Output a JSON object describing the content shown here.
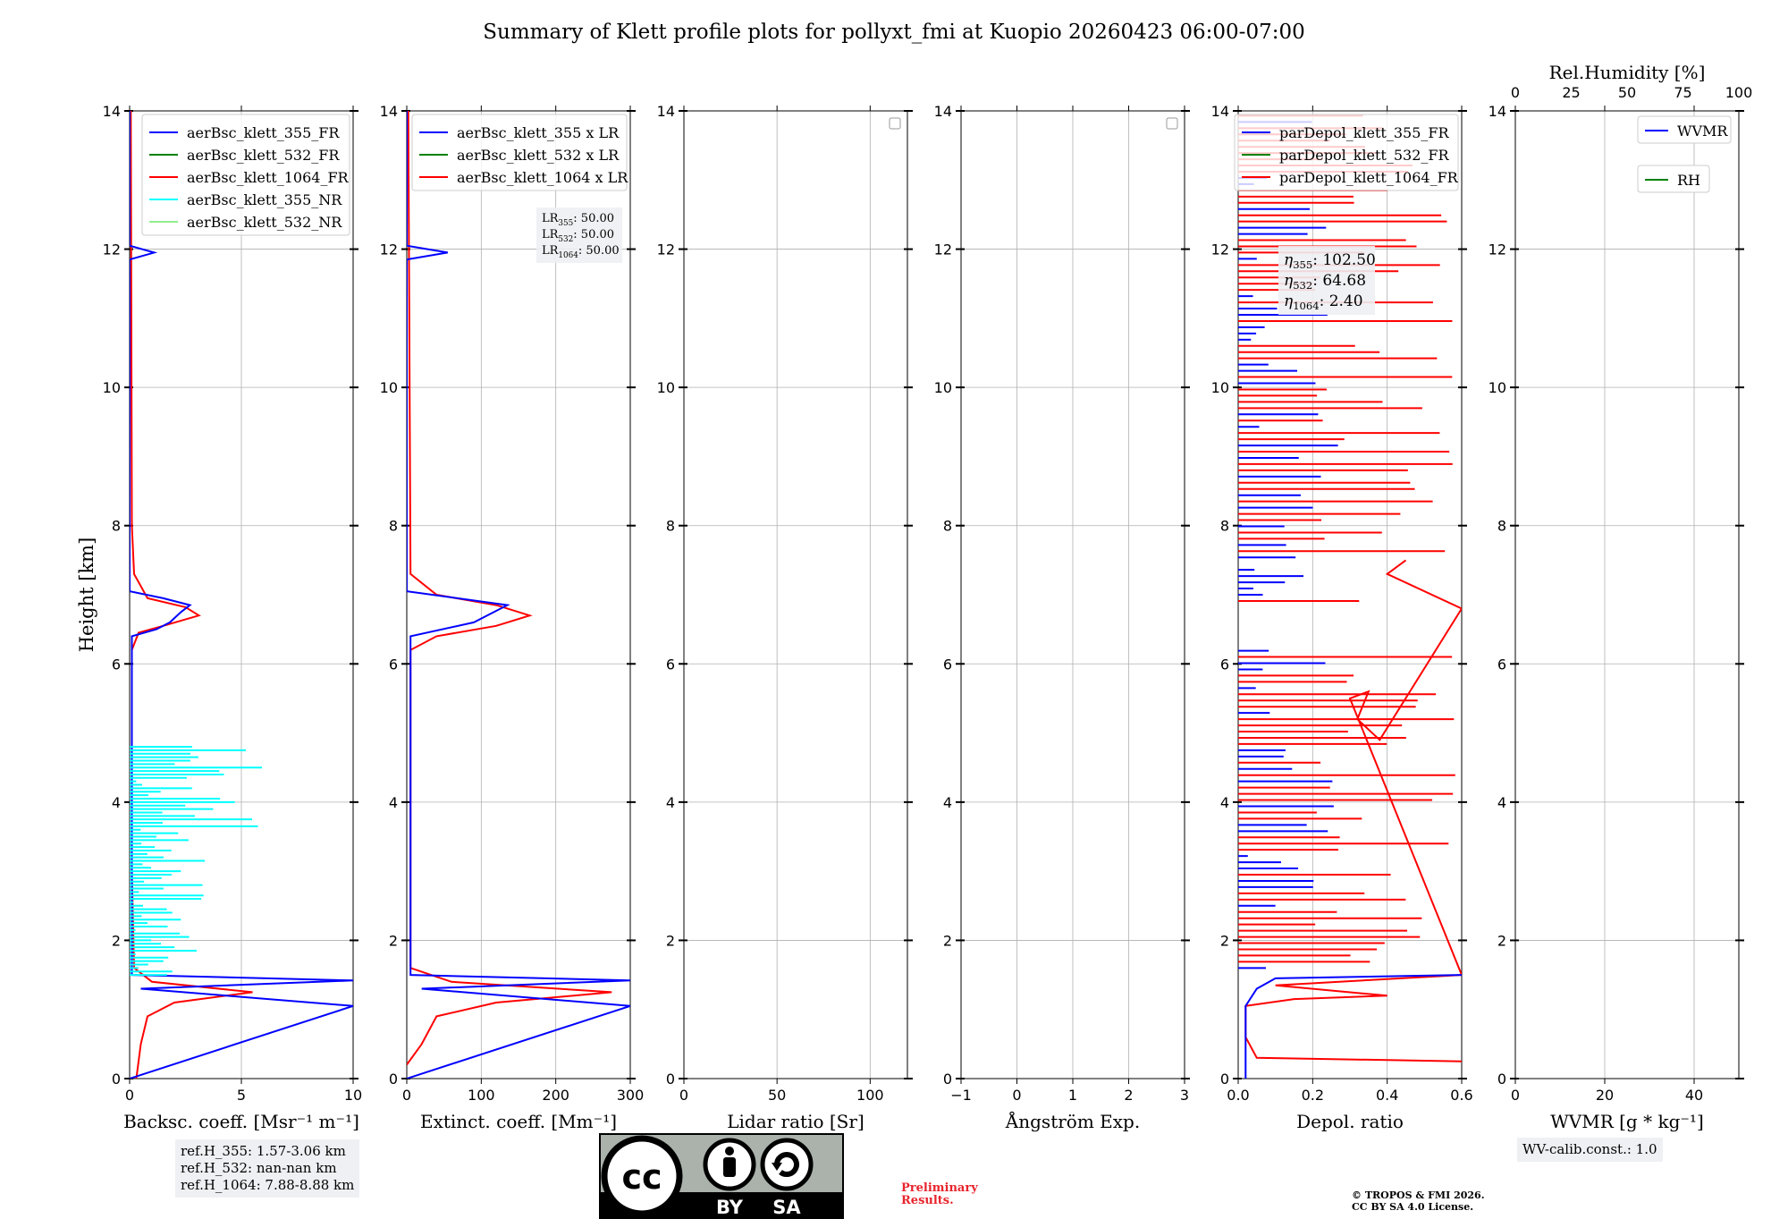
{
  "title": "Summary of Klett profile plots for pollyxt_fmi at Kuopio 20260423 06:00-07:00",
  "colors": {
    "c355": "#0000ff",
    "c532": "#008000",
    "c1064": "#ff0000",
    "c355nr": "#00ffff",
    "c532nr": "#90ee90"
  },
  "y_axis": {
    "label": "Height [km]",
    "ticks": [
      "0",
      "2",
      "4",
      "6",
      "8",
      "10",
      "12",
      "14"
    ]
  },
  "panels": [
    {
      "key": "bsc",
      "xlabel": "Backsc. coeff. [Msr⁻¹ m⁻¹]",
      "xticks": [
        "0",
        "5",
        "10"
      ],
      "legend": [
        "aerBsc_klett_355_FR",
        "aerBsc_klett_532_FR",
        "aerBsc_klett_1064_FR",
        "aerBsc_klett_355_NR",
        "aerBsc_klett_532_NR"
      ]
    },
    {
      "key": "ext",
      "xlabel": "Extinct. coeff. [Mm⁻¹]",
      "xticks": [
        "0",
        "100",
        "200",
        "300"
      ],
      "legend": [
        "aerBsc_klett_355 x LR",
        "aerBsc_klett_532 x LR",
        "aerBsc_klett_1064 x LR"
      ],
      "lr_box": [
        {
          "sym": "LR",
          "sub": "355",
          "val": ": 50.00"
        },
        {
          "sym": "LR",
          "sub": "532",
          "val": ": 50.00"
        },
        {
          "sym": "LR",
          "sub": "1064",
          "val": ": 50.00"
        }
      ]
    },
    {
      "key": "lr",
      "xlabel": "Lidar ratio [Sr]",
      "xticks": [
        "0",
        "50",
        "100"
      ]
    },
    {
      "key": "ang",
      "xlabel": "Ångström Exp.",
      "xticks": [
        "−1",
        "0",
        "1",
        "2",
        "3"
      ]
    },
    {
      "key": "dep",
      "xlabel": "Depol. ratio",
      "xticks": [
        "0.0",
        "0.2",
        "0.4",
        "0.6"
      ],
      "legend": [
        "parDepol_klett_355_FR",
        "parDepol_klett_532_FR",
        "parDepol_klett_1064_FR"
      ],
      "eta_box": [
        {
          "sym": "η",
          "sub": "355",
          "val": ": 102.50"
        },
        {
          "sym": "η",
          "sub": "532",
          "val": ": 64.68"
        },
        {
          "sym": "η",
          "sub": "1064",
          "val": ": 2.40"
        }
      ]
    },
    {
      "key": "wv",
      "xlabel": "WVMR [g * kg⁻¹]",
      "xticks": [
        "0",
        "20",
        "40"
      ],
      "top_label": "Rel.Humidity [%]",
      "top_ticks": [
        "0",
        "25",
        "50",
        "75",
        "100"
      ],
      "legend": [
        "WVMR",
        "RH"
      ]
    }
  ],
  "chart_data": [
    {
      "type": "line",
      "name": "backscatter",
      "xlim": [
        0,
        10
      ],
      "ylim": [
        0,
        14
      ],
      "series": [
        {
          "name": "aerBsc_klett_1064_FR",
          "points": [
            [
              0.3,
              0
            ],
            [
              0.5,
              0.5
            ],
            [
              0.8,
              0.9
            ],
            [
              2,
              1.1
            ],
            [
              5.5,
              1.25
            ],
            [
              1,
              1.4
            ],
            [
              0.2,
              1.6
            ],
            [
              0.1,
              3
            ],
            [
              0.1,
              6.2
            ],
            [
              0.4,
              6.45
            ],
            [
              1.5,
              6.55
            ],
            [
              3.1,
              6.7
            ],
            [
              2.5,
              6.82
            ],
            [
              0.8,
              6.95
            ],
            [
              0.2,
              7.3
            ],
            [
              0.1,
              8
            ],
            [
              0.05,
              14
            ]
          ]
        },
        {
          "name": "aerBsc_klett_355_FR",
          "points": [
            [
              0,
              0
            ],
            [
              10,
              1.05
            ],
            [
              0.5,
              1.3
            ],
            [
              10,
              1.42
            ],
            [
              0.1,
              1.5
            ],
            [
              0.1,
              6.4
            ],
            [
              1.2,
              6.5
            ],
            [
              1.8,
              6.6
            ],
            [
              2.3,
              6.75
            ],
            [
              2.7,
              6.85
            ],
            [
              1.5,
              6.95
            ],
            [
              0,
              7.05
            ],
            [
              0,
              11.85
            ],
            [
              1.1,
              11.95
            ],
            [
              0,
              12.05
            ],
            [
              0,
              14
            ]
          ]
        },
        {
          "name": "aerBsc_klett_355_NR",
          "values_km": [
            1.5,
            4.8
          ],
          "max": 6.2
        }
      ]
    },
    {
      "type": "line",
      "name": "extinction",
      "xlim": [
        0,
        300
      ],
      "ylim": [
        0,
        14
      ],
      "series": [
        {
          "name": "aerBsc_klett_1064 x LR",
          "points": [
            [
              0,
              0.2
            ],
            [
              20,
              0.5
            ],
            [
              40,
              0.9
            ],
            [
              120,
              1.1
            ],
            [
              275,
              1.25
            ],
            [
              60,
              1.4
            ],
            [
              5,
              1.6
            ],
            [
              5,
              6.2
            ],
            [
              40,
              6.4
            ],
            [
              120,
              6.55
            ],
            [
              165,
              6.7
            ],
            [
              120,
              6.85
            ],
            [
              40,
              7
            ],
            [
              5,
              7.3
            ],
            [
              2,
              14
            ]
          ]
        },
        {
          "name": "aerBsc_klett_355 x LR",
          "points": [
            [
              0,
              0
            ],
            [
              300,
              1.05
            ],
            [
              20,
              1.3
            ],
            [
              300,
              1.42
            ],
            [
              5,
              1.5
            ],
            [
              5,
              6.4
            ],
            [
              90,
              6.6
            ],
            [
              135,
              6.85
            ],
            [
              0,
              7.05
            ],
            [
              0,
              11.85
            ],
            [
              55,
              11.95
            ],
            [
              0,
              12.05
            ],
            [
              0,
              14
            ]
          ]
        }
      ]
    },
    {
      "type": "line",
      "name": "lidar_ratio",
      "xlim": [
        0,
        120
      ],
      "ylim": [
        0,
        14
      ],
      "series": []
    },
    {
      "type": "line",
      "name": "angstrom",
      "xlim": [
        -1,
        3
      ],
      "ylim": [
        0,
        14
      ],
      "series": []
    },
    {
      "type": "line",
      "name": "depol",
      "xlim": [
        0,
        0.6
      ],
      "ylim": [
        0,
        14
      ],
      "series": [
        {
          "name": "parDepol_klett_1064_FR",
          "points": [
            [
              0.6,
              0.25
            ],
            [
              0.05,
              0.3
            ],
            [
              0.02,
              0.6
            ],
            [
              0.02,
              1.05
            ],
            [
              0.15,
              1.15
            ],
            [
              0.4,
              1.2
            ],
            [
              0.1,
              1.35
            ],
            [
              0.6,
              1.5
            ],
            [
              0.3,
              5.5
            ],
            [
              0.35,
              5.6
            ],
            [
              0.32,
              5.2
            ],
            [
              0.38,
              4.9
            ],
            [
              0.6,
              6.8
            ],
            [
              0.4,
              7.3
            ],
            [
              0.45,
              7.5
            ]
          ]
        },
        {
          "name": "parDepol_klett_355_FR",
          "points": [
            [
              0.02,
              0
            ],
            [
              0.02,
              1.05
            ],
            [
              0.05,
              1.3
            ],
            [
              0.1,
              1.45
            ],
            [
              0.6,
              1.5
            ]
          ]
        }
      ]
    },
    {
      "type": "line",
      "name": "wvmr",
      "xlim": [
        0,
        50
      ],
      "ylim": [
        0,
        14
      ],
      "series": []
    }
  ],
  "notes": {
    "refh": [
      "ref.H_355: 1.57-3.06 km",
      "ref.H_532: nan-nan km",
      "ref.H_1064: 7.88-8.88 km"
    ],
    "wv_calib": "WV-calib.const.: 1.0",
    "preliminary": [
      "Preliminary",
      "Results."
    ],
    "copyright": [
      "© TROPOS & FMI 2026.",
      "CC BY SA 4.0 License."
    ],
    "license_badge": {
      "by": "BY",
      "sa": "SA"
    }
  }
}
